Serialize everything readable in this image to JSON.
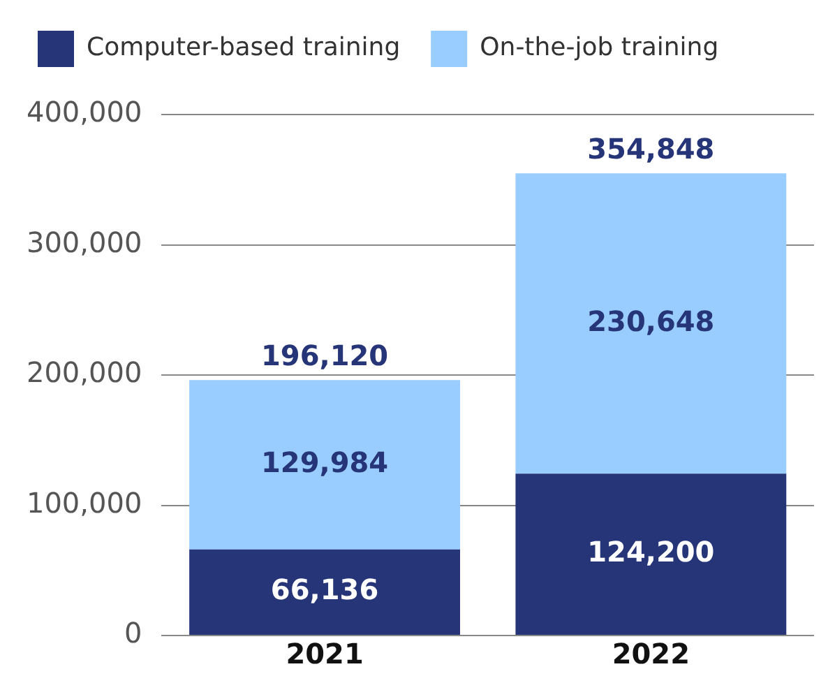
{
  "chart_data": {
    "type": "bar",
    "stacked": true,
    "categories": [
      "2021",
      "2022"
    ],
    "series": [
      {
        "name": "Computer-based training",
        "color": "#263478",
        "values": [
          66136,
          124200
        ],
        "value_labels": [
          "66,136",
          "124,200"
        ]
      },
      {
        "name": "On-the-job training",
        "color": "#99ccff",
        "values": [
          129984,
          230648
        ],
        "value_labels": [
          "129,984",
          "230,648"
        ]
      }
    ],
    "ylim": [
      0,
      400000
    ],
    "yticks": [
      {
        "value": 0,
        "label": "0"
      },
      {
        "value": 100000,
        "label": "100,000"
      },
      {
        "value": 200000,
        "label": "200,000"
      },
      {
        "value": 300000,
        "label": "300,000"
      },
      {
        "value": 400000,
        "label": "400,000"
      }
    ],
    "grid": "y",
    "legend": "top left",
    "totals": [
      "196,120",
      "354,848"
    ]
  }
}
